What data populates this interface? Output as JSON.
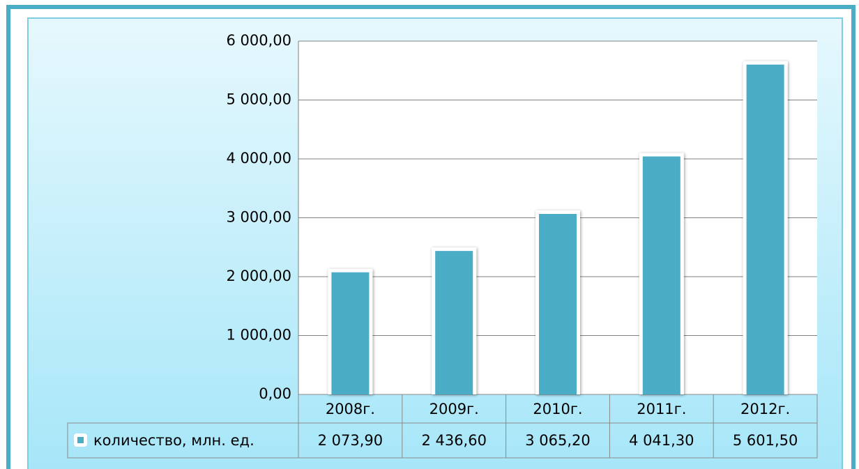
{
  "chart_data": {
    "type": "bar",
    "categories": [
      "2008г.",
      "2009г.",
      "2010г.",
      "2011г.",
      "2012г."
    ],
    "series": [
      {
        "name": "количество, млн. ед.",
        "color": "#4bacc6",
        "values": [
          2073.9,
          2436.6,
          3065.2,
          4041.3,
          5601.5
        ],
        "value_labels": [
          "2 073,90",
          "2 436,60",
          "3 065,20",
          "4 041,30",
          "5 601,50"
        ]
      }
    ],
    "ylim": [
      0,
      6000
    ],
    "yticks": [
      {
        "value": 0,
        "label": "0,00"
      },
      {
        "value": 1000,
        "label": "1 000,00"
      },
      {
        "value": 2000,
        "label": "2 000,00"
      },
      {
        "value": 3000,
        "label": "3 000,00"
      },
      {
        "value": 4000,
        "label": "4 000,00"
      },
      {
        "value": 5000,
        "label": "5 000,00"
      },
      {
        "value": 6000,
        "label": "6 000,00"
      }
    ],
    "grid": true
  }
}
